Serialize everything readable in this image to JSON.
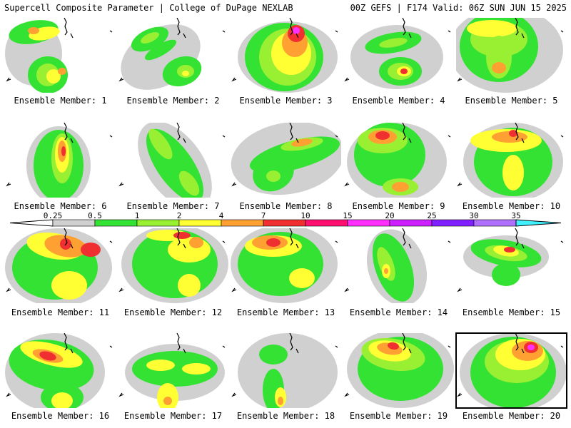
{
  "header": {
    "left": "Supercell Composite Parameter | College of DuPage NEXLAB",
    "right": "00Z GEFS | F174 Valid: 06Z SUN JUN 15 2025"
  },
  "legend": {
    "labels": [
      "0.25",
      "0.5",
      "1",
      "2",
      "4",
      "7",
      "10",
      "15",
      "20",
      "25",
      "30",
      "35"
    ],
    "colors": [
      "#d0d0d0",
      "#33e233",
      "#99f033",
      "#ffff33",
      "#ffa033",
      "#f03030",
      "#ff1070",
      "#ff30ff",
      "#cc20ff",
      "#8020ff",
      "#b070ff",
      "#40f0ff"
    ]
  },
  "members": [
    {
      "label": "Ensemble Member: 1"
    },
    {
      "label": "Ensemble Member: 2"
    },
    {
      "label": "Ensemble Member: 3"
    },
    {
      "label": "Ensemble Member: 4"
    },
    {
      "label": "Ensemble Member: 5"
    },
    {
      "label": "Ensemble Member: 6"
    },
    {
      "label": "Ensemble Member: 7"
    },
    {
      "label": "Ensemble Member: 8"
    },
    {
      "label": "Ensemble Member: 9"
    },
    {
      "label": "Ensemble Member: 10"
    },
    {
      "label": "Ensemble Member: 11"
    },
    {
      "label": "Ensemble Member: 12"
    },
    {
      "label": "Ensemble Member: 13"
    },
    {
      "label": "Ensemble Member: 14"
    },
    {
      "label": "Ensemble Member: 15"
    },
    {
      "label": "Ensemble Member: 16"
    },
    {
      "label": "Ensemble Member: 17"
    },
    {
      "label": "Ensemble Member: 18"
    },
    {
      "label": "Ensemble Member: 19"
    },
    {
      "label": "Ensemble Member: 20"
    }
  ]
}
